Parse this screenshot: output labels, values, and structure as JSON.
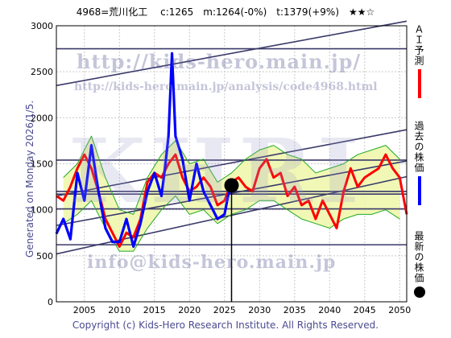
{
  "header": {
    "title": "4968=荒川化工　 c:1265　m:1264(-0%)　t:1379(+9%)　★★☆",
    "generated": "Generated on Monday 2026/1/5.",
    "copyright": "Copyright (c) Kids-Hero Research Institute. All Rights Reserved."
  },
  "watermarks": {
    "url": "http://kids-hero.main.jp/",
    "analysis_url": "http://kids-hero.main.jp/analysis/code4968.html",
    "email": "info@kids-hero.main.jp",
    "big": "KHRI"
  },
  "legend": {
    "forecast": {
      "label": "ＡＩ予測",
      "color": "#ff0000"
    },
    "past": {
      "label": "過去の株価",
      "color": "#0000ff"
    },
    "latest": {
      "label": "最新の株価",
      "color": "#000000"
    }
  },
  "chart_data": {
    "type": "line",
    "xlim": [
      2001,
      2051
    ],
    "ylim": [
      0,
      3000
    ],
    "x_ticks": [
      2005,
      2010,
      2015,
      2020,
      2025,
      2030,
      2035,
      2040,
      2045,
      2050
    ],
    "y_ticks": [
      0,
      500,
      1000,
      1500,
      2000,
      2500,
      3000
    ],
    "grid": true,
    "latest_point": {
      "x": 2026.0,
      "y": 1265
    },
    "horizontal_lines": [
      2750,
      1540,
      1200,
      1170,
      1010,
      620
    ],
    "trend_lines": [
      {
        "x": [
          2001,
          2051
        ],
        "y": [
          2350,
          3050
        ]
      },
      {
        "x": [
          2001,
          2051
        ],
        "y": [
          1150,
          1870
        ]
      },
      {
        "x": [
          2001,
          2051
        ],
        "y": [
          830,
          1530
        ]
      },
      {
        "x": [
          2001,
          2051
        ],
        "y": [
          520,
          1360
        ]
      }
    ],
    "series": [
      {
        "name": "過去の株価",
        "color": "#0000ff",
        "x": [
          2001,
          2002,
          2003,
          2004,
          2005,
          2006,
          2007,
          2008,
          2009,
          2010,
          2011,
          2012,
          2013,
          2014,
          2015,
          2016,
          2016.5,
          2017,
          2017.5,
          2018,
          2019,
          2020,
          2021,
          2022,
          2023,
          2024,
          2025,
          2025.5,
          2026
        ],
        "y": [
          740,
          900,
          680,
          1400,
          1100,
          1700,
          1200,
          800,
          650,
          650,
          900,
          600,
          850,
          1200,
          1400,
          1150,
          1450,
          1800,
          2700,
          1800,
          1550,
          1100,
          1500,
          1200,
          1050,
          900,
          950,
          1150,
          1265
        ]
      },
      {
        "name": "ＡＩ予測",
        "color": "#ff0000",
        "x": [
          2001,
          2002,
          2003,
          2004,
          2005,
          2006,
          2007,
          2008,
          2009,
          2010,
          2011,
          2012,
          2013,
          2014,
          2015,
          2016,
          2017,
          2018,
          2019,
          2020,
          2021,
          2022,
          2023,
          2024,
          2025,
          2026,
          2027,
          2028,
          2029,
          2030,
          2031,
          2032,
          2033,
          2034,
          2035,
          2036,
          2037,
          2038,
          2039,
          2040,
          2041,
          2042,
          2043,
          2044,
          2045,
          2046,
          2047,
          2048,
          2049,
          2050,
          2051
        ],
        "y": [
          1150,
          1100,
          1250,
          1450,
          1600,
          1450,
          1200,
          900,
          750,
          600,
          750,
          700,
          900,
          1300,
          1400,
          1350,
          1500,
          1600,
          1350,
          1200,
          1250,
          1350,
          1250,
          1050,
          1100,
          1300,
          1350,
          1250,
          1200,
          1450,
          1550,
          1350,
          1400,
          1150,
          1250,
          1050,
          1100,
          900,
          1100,
          950,
          800,
          1200,
          1450,
          1250,
          1350,
          1400,
          1450,
          1600,
          1450,
          1350,
          950
        ]
      },
      {
        "name": "upper band",
        "color": "#22aa22",
        "x": [
          2002,
          2004,
          2006,
          2008,
          2010,
          2012,
          2014,
          2016,
          2018,
          2020,
          2022,
          2024,
          2026,
          2028,
          2030,
          2032,
          2034,
          2036,
          2038,
          2040,
          2042,
          2044,
          2046,
          2048,
          2050
        ],
        "y": [
          1350,
          1500,
          1800,
          1350,
          1000,
          950,
          1350,
          1600,
          1750,
          1500,
          1550,
          1300,
          1400,
          1550,
          1650,
          1700,
          1600,
          1550,
          1400,
          1450,
          1500,
          1600,
          1650,
          1700,
          1550
        ]
      },
      {
        "name": "lower band",
        "color": "#22aa22",
        "x": [
          2002,
          2004,
          2006,
          2008,
          2010,
          2012,
          2014,
          2016,
          2018,
          2020,
          2022,
          2024,
          2026,
          2028,
          2030,
          2032,
          2034,
          2036,
          2038,
          2040,
          2042,
          2044,
          2046,
          2048,
          2050
        ],
        "y": [
          850,
          950,
          1100,
          800,
          550,
          550,
          800,
          1000,
          1150,
          950,
          1000,
          850,
          950,
          1000,
          1100,
          1100,
          1000,
          900,
          850,
          800,
          900,
          950,
          950,
          1000,
          900
        ]
      }
    ]
  }
}
